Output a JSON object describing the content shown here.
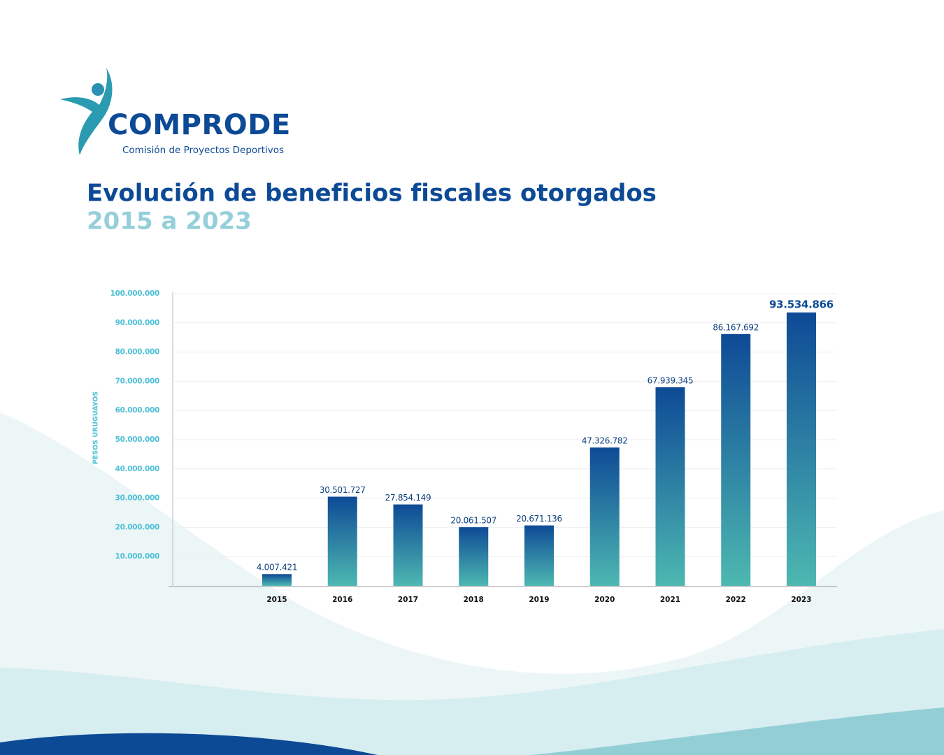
{
  "logo": {
    "name": "COMPRODE",
    "tagline": "Comisión de Proyectos Deportivos"
  },
  "chart_data": {
    "type": "bar",
    "title": "Evolución de beneficios fiscales otorgados",
    "subtitle": "2015 a 2023",
    "y_label": "PESOS URUGUAYOS",
    "categories": [
      "2015",
      "2016",
      "2017",
      "2018",
      "2019",
      "2020",
      "2021",
      "2022",
      "2023"
    ],
    "values": [
      4007421,
      30501727,
      27854149,
      20061507,
      20671136,
      47326782,
      67939345,
      86167692,
      93534866
    ],
    "value_labels": [
      "4.007.421",
      "30.501.727",
      "27.854.149",
      "20.061.507",
      "20.671.136",
      "47.326.782",
      "67.939.345",
      "86.167.692",
      "93.534.866"
    ],
    "colors": [
      "#0e4a96",
      "#4db8b1"
    ],
    "ylim": [
      0,
      100000000
    ],
    "yticks": [
      {
        "value": 10000000,
        "label": "10.000.000"
      },
      {
        "value": 20000000,
        "label": "20.000.000"
      },
      {
        "value": 30000000,
        "label": "30.000.000"
      },
      {
        "value": 40000000,
        "label": "40.000.000"
      },
      {
        "value": 50000000,
        "label": "50.000.000"
      },
      {
        "value": 60000000,
        "label": "60.000.000"
      },
      {
        "value": 70000000,
        "label": "70.000.000"
      },
      {
        "value": 80000000,
        "label": "80.000.000"
      },
      {
        "value": 90000000,
        "label": "90.000.000"
      },
      {
        "value": 100000000,
        "label": "100.000.000"
      }
    ],
    "grid": true
  }
}
